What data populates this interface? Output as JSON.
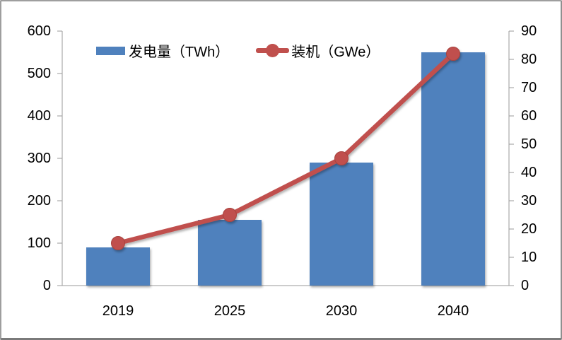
{
  "chart_data": {
    "type": "combo-bar-line",
    "categories": [
      "2019",
      "2025",
      "2030",
      "2040"
    ],
    "series": [
      {
        "name": "发电量（TWh）",
        "type": "bar",
        "axis": "left",
        "color": "#4f81bd",
        "values": [
          90,
          155,
          290,
          550
        ]
      },
      {
        "name": "装机（GWe）",
        "type": "line",
        "axis": "right",
        "color": "#c0504d",
        "values": [
          15,
          25,
          45,
          82
        ]
      }
    ],
    "left_axis": {
      "min": 0,
      "max": 600,
      "step": 100,
      "ticks": [
        0,
        100,
        200,
        300,
        400,
        500,
        600
      ]
    },
    "right_axis": {
      "min": 0,
      "max": 90,
      "step": 10,
      "ticks": [
        0,
        10,
        20,
        30,
        40,
        50,
        60,
        70,
        80,
        90
      ]
    },
    "grid": false,
    "legend_position": "top-inside",
    "title": "",
    "xlabel": "",
    "ylabel_left": "",
    "ylabel_right": ""
  },
  "colors": {
    "axis_line": "#9a9a9a",
    "tick_label": "#000000",
    "frame_border": "#9e9e9e",
    "background": "#ffffff"
  }
}
